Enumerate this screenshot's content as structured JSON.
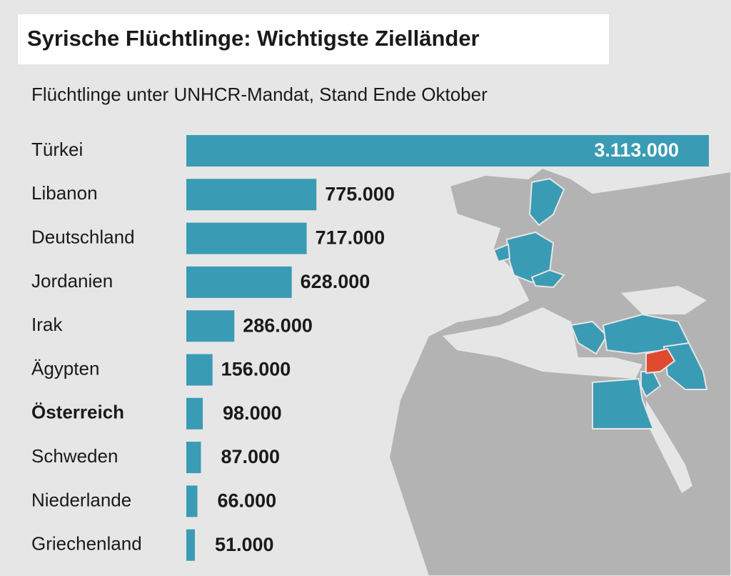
{
  "chart_data": {
    "type": "bar",
    "orientation": "horizontal",
    "title": "Syrische Flüchtlinge: Wichtigste Zielländer",
    "subtitle": "Flüchtlinge unter UNHCR-Mandat, Stand Ende Oktober",
    "categories": [
      "Türkei",
      "Libanon",
      "Deutschland",
      "Jordanien",
      "Irak",
      "Ägypten",
      "Österreich",
      "Schweden",
      "Niederlande",
      "Griechenland"
    ],
    "values": [
      3113000,
      775000,
      717000,
      628000,
      286000,
      156000,
      98000,
      87000,
      66000,
      51000
    ],
    "value_labels": [
      "3.113.000",
      "775.000",
      "717.000",
      "628.000",
      "286.000",
      "156.000",
      "98.000",
      "87.000",
      "66.000",
      "51.000"
    ],
    "color": "#3a9bb4",
    "highlighted_category": "Österreich"
  }
}
